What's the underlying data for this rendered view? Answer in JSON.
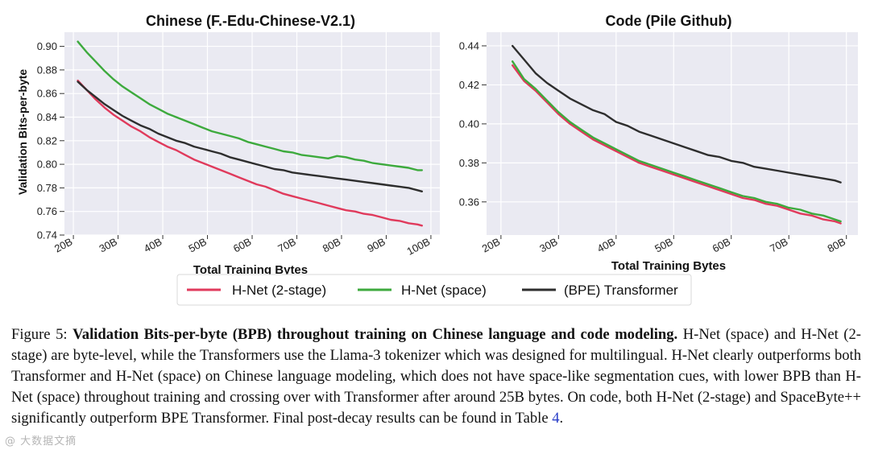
{
  "chart_data": [
    {
      "type": "line",
      "title": "Chinese (F.-Edu-Chinese-V2.1)",
      "xlabel": "Total Training Bytes",
      "ylabel": "Validation Bits-per-byte",
      "xticks": [
        "20B",
        "30B",
        "40B",
        "50B",
        "60B",
        "70B",
        "80B",
        "90B",
        "100B"
      ],
      "yticks": [
        "0.74",
        "0.76",
        "0.78",
        "0.80",
        "0.82",
        "0.84",
        "0.86",
        "0.88",
        "0.90"
      ],
      "xlim": [
        18,
        102
      ],
      "ylim": [
        0.74,
        0.912
      ],
      "grid": true,
      "series": [
        {
          "name": "H-Net (2-stage)",
          "x": [
            21,
            23,
            25,
            27,
            29,
            31,
            33,
            35,
            37,
            39,
            41,
            43,
            45,
            47,
            49,
            51,
            53,
            55,
            57,
            59,
            61,
            63,
            65,
            67,
            69,
            71,
            73,
            75,
            77,
            79,
            81,
            83,
            85,
            87,
            89,
            91,
            93,
            95,
            97,
            98
          ],
          "y": [
            0.871,
            0.863,
            0.855,
            0.848,
            0.842,
            0.837,
            0.832,
            0.828,
            0.823,
            0.819,
            0.815,
            0.812,
            0.808,
            0.804,
            0.801,
            0.798,
            0.795,
            0.792,
            0.789,
            0.786,
            0.783,
            0.781,
            0.778,
            0.775,
            0.773,
            0.771,
            0.769,
            0.767,
            0.765,
            0.763,
            0.761,
            0.76,
            0.758,
            0.757,
            0.755,
            0.753,
            0.752,
            0.75,
            0.749,
            0.748
          ]
        },
        {
          "name": "H-Net (space)",
          "x": [
            21,
            23,
            25,
            27,
            29,
            31,
            33,
            35,
            37,
            39,
            41,
            43,
            45,
            47,
            49,
            51,
            53,
            55,
            57,
            59,
            61,
            63,
            65,
            67,
            69,
            71,
            73,
            75,
            77,
            79,
            81,
            83,
            85,
            87,
            89,
            91,
            93,
            95,
            97,
            98
          ],
          "y": [
            0.904,
            0.895,
            0.887,
            0.879,
            0.872,
            0.866,
            0.861,
            0.856,
            0.851,
            0.847,
            0.843,
            0.84,
            0.837,
            0.834,
            0.831,
            0.828,
            0.826,
            0.824,
            0.822,
            0.819,
            0.817,
            0.815,
            0.813,
            0.811,
            0.81,
            0.808,
            0.807,
            0.806,
            0.805,
            0.807,
            0.806,
            0.804,
            0.803,
            0.801,
            0.8,
            0.799,
            0.798,
            0.797,
            0.795,
            0.795
          ]
        },
        {
          "name": "(BPE) Transformer",
          "x": [
            21,
            23,
            25,
            27,
            29,
            31,
            33,
            35,
            37,
            39,
            41,
            43,
            45,
            47,
            49,
            51,
            53,
            55,
            57,
            59,
            61,
            63,
            65,
            67,
            69,
            71,
            73,
            75,
            77,
            79,
            81,
            83,
            85,
            87,
            89,
            91,
            93,
            95,
            97,
            98
          ],
          "y": [
            0.87,
            0.863,
            0.857,
            0.851,
            0.846,
            0.841,
            0.837,
            0.833,
            0.83,
            0.826,
            0.823,
            0.82,
            0.818,
            0.815,
            0.813,
            0.811,
            0.809,
            0.806,
            0.804,
            0.802,
            0.8,
            0.798,
            0.796,
            0.795,
            0.793,
            0.792,
            0.791,
            0.79,
            0.789,
            0.788,
            0.787,
            0.786,
            0.785,
            0.784,
            0.783,
            0.782,
            0.781,
            0.78,
            0.778,
            0.777
          ]
        }
      ]
    },
    {
      "type": "line",
      "title": "Code (Pile Github)",
      "xlabel": "Total Training Bytes",
      "ylabel": "",
      "xticks": [
        "20B",
        "30B",
        "40B",
        "50B",
        "60B",
        "70B",
        "80B"
      ],
      "yticks": [
        "0.36",
        "0.38",
        "0.40",
        "0.42",
        "0.44"
      ],
      "xlim": [
        17.5,
        82
      ],
      "ylim": [
        0.343,
        0.447
      ],
      "grid": true,
      "series": [
        {
          "name": "H-Net (2-stage)",
          "x": [
            22,
            24,
            26,
            28,
            30,
            32,
            34,
            36,
            38,
            40,
            42,
            44,
            46,
            48,
            50,
            52,
            54,
            56,
            58,
            60,
            62,
            64,
            66,
            68,
            70,
            72,
            74,
            76,
            78,
            79
          ],
          "y": [
            0.43,
            0.422,
            0.417,
            0.411,
            0.405,
            0.4,
            0.396,
            0.392,
            0.389,
            0.386,
            0.383,
            0.38,
            0.378,
            0.376,
            0.374,
            0.372,
            0.37,
            0.368,
            0.366,
            0.364,
            0.362,
            0.361,
            0.359,
            0.358,
            0.356,
            0.354,
            0.353,
            0.351,
            0.35,
            0.349
          ]
        },
        {
          "name": "H-Net (space)",
          "x": [
            22,
            24,
            26,
            28,
            30,
            32,
            34,
            36,
            38,
            40,
            42,
            44,
            46,
            48,
            50,
            52,
            54,
            56,
            58,
            60,
            62,
            64,
            66,
            68,
            70,
            72,
            74,
            76,
            78,
            79
          ],
          "y": [
            0.432,
            0.423,
            0.418,
            0.412,
            0.406,
            0.401,
            0.397,
            0.393,
            0.39,
            0.387,
            0.384,
            0.381,
            0.379,
            0.377,
            0.375,
            0.373,
            0.371,
            0.369,
            0.367,
            0.365,
            0.363,
            0.362,
            0.36,
            0.359,
            0.357,
            0.356,
            0.354,
            0.353,
            0.351,
            0.35
          ]
        },
        {
          "name": "(BPE) Transformer",
          "x": [
            22,
            24,
            26,
            28,
            30,
            32,
            34,
            36,
            38,
            40,
            42,
            44,
            46,
            48,
            50,
            52,
            54,
            56,
            58,
            60,
            62,
            64,
            66,
            68,
            70,
            72,
            74,
            76,
            78,
            79
          ],
          "y": [
            0.44,
            0.433,
            0.426,
            0.421,
            0.417,
            0.413,
            0.41,
            0.407,
            0.405,
            0.401,
            0.399,
            0.396,
            0.394,
            0.392,
            0.39,
            0.388,
            0.386,
            0.384,
            0.383,
            0.381,
            0.38,
            0.378,
            0.377,
            0.376,
            0.375,
            0.374,
            0.373,
            0.372,
            0.371,
            0.37
          ]
        }
      ]
    }
  ],
  "legend": {
    "items": [
      {
        "label": "H-Net (2-stage)",
        "color": "#e03a5c"
      },
      {
        "label": "H-Net (space)",
        "color": "#3daa3d"
      },
      {
        "label": "(BPE) Transformer",
        "color": "#2e2e2e"
      }
    ]
  },
  "colors": {
    "hnet_2stage": "#e03a5c",
    "hnet_space": "#3daa3d",
    "transformer": "#2e2e2e",
    "plot_bg": "#eaeaf2"
  },
  "caption": {
    "label": "Figure 5: ",
    "bold": "Validation Bits-per-byte (BPB) throughout training on Chinese language and code modeling.",
    "body": " H-Net (space) and H-Net (2-stage) are byte-level, while the Transformers use the Llama-3 tokenizer which was designed for multilingual. H-Net clearly outperforms both Transformer and H-Net (space) on Chinese language modeling, which does not have space-like segmentation cues, with lower BPB than H-Net (space) throughout training and crossing over with Transformer after around 25B bytes. On code, both H-Net (2-stage) and SpaceByte++ significantly outperform BPE Transformer. Final post-decay results can be found in Table ",
    "table_ref": "4",
    "end": "."
  },
  "watermark": "@ 大数据文摘"
}
